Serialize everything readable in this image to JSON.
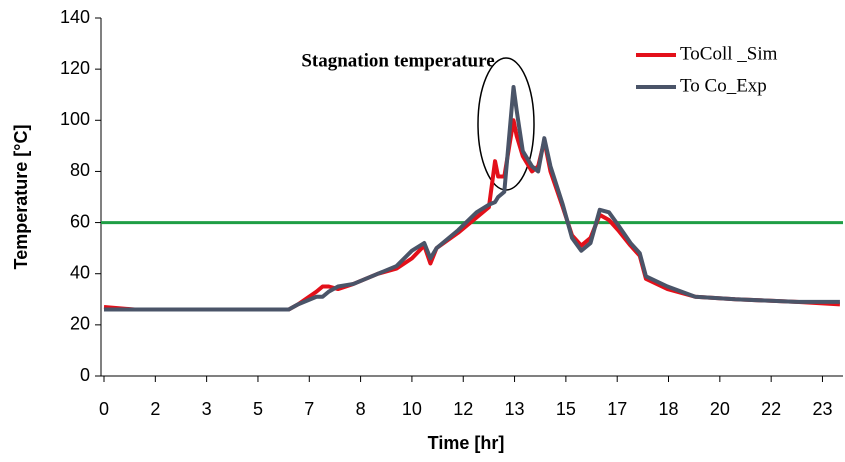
{
  "chart_data": {
    "type": "line",
    "annotation": "Stagnation temperature",
    "xlabel": "Time [hr]",
    "ylabel": "Temperature [°C]",
    "xlim": [
      0,
      24
    ],
    "ylim": [
      0,
      140
    ],
    "yticks": [
      0,
      20,
      40,
      60,
      80,
      100,
      120,
      140
    ],
    "xticks": [
      {
        "value": 0,
        "label": "0"
      },
      {
        "value": 1.667,
        "label": "2"
      },
      {
        "value": 3.333,
        "label": "3"
      },
      {
        "value": 5,
        "label": "5"
      },
      {
        "value": 6.667,
        "label": "7"
      },
      {
        "value": 8.333,
        "label": "8"
      },
      {
        "value": 10,
        "label": "10"
      },
      {
        "value": 11.667,
        "label": "12"
      },
      {
        "value": 13.333,
        "label": "13"
      },
      {
        "value": 15,
        "label": "15"
      },
      {
        "value": 16.667,
        "label": "17"
      },
      {
        "value": 18.333,
        "label": "18"
      },
      {
        "value": 20,
        "label": "20"
      },
      {
        "value": 21.667,
        "label": "22"
      },
      {
        "value": 23.333,
        "label": "23"
      }
    ],
    "reference_line": {
      "value": 60,
      "color": "#1f9e45"
    },
    "x": [
      0,
      1,
      2,
      3,
      4,
      5,
      5.8,
      6.0,
      6.3,
      6.9,
      7.1,
      7.3,
      7.6,
      8.1,
      8.9,
      9.5,
      10.0,
      10.4,
      10.6,
      10.8,
      11.5,
      12.1,
      12.5,
      12.7,
      12.8,
      13.0,
      13.3,
      13.4,
      13.6,
      13.9,
      14.1,
      14.3,
      14.5,
      14.9,
      15.2,
      15.5,
      15.8,
      16.1,
      16.4,
      16.7,
      17.1,
      17.4,
      17.6,
      18.3,
      19.2,
      20.5,
      22.5,
      23.9
    ],
    "series": [
      {
        "name": "ToColl _Sim",
        "color": "#e3101a",
        "values": [
          27,
          26,
          26,
          26,
          26,
          26,
          26,
          26,
          28,
          33,
          35,
          35,
          34,
          36,
          40,
          42,
          46,
          51,
          44,
          50,
          56,
          62,
          66,
          84,
          78,
          78,
          100,
          94,
          86,
          80,
          82,
          92,
          80,
          66,
          55,
          51,
          54,
          63,
          61,
          57,
          51,
          47,
          38,
          34,
          31,
          30,
          29,
          28
        ]
      },
      {
        "name": "To Co_Exp",
        "color": "#4a5468",
        "values": [
          26,
          26,
          26,
          26,
          26,
          26,
          26,
          26,
          28,
          31,
          31,
          33,
          35,
          36,
          40,
          43,
          49,
          52,
          46,
          50,
          57,
          64,
          67,
          68,
          70,
          72,
          113,
          104,
          88,
          82,
          80,
          93,
          82,
          67,
          54,
          49,
          52,
          65,
          64,
          59,
          52,
          48,
          39,
          35,
          31,
          30,
          29,
          29
        ]
      }
    ]
  }
}
